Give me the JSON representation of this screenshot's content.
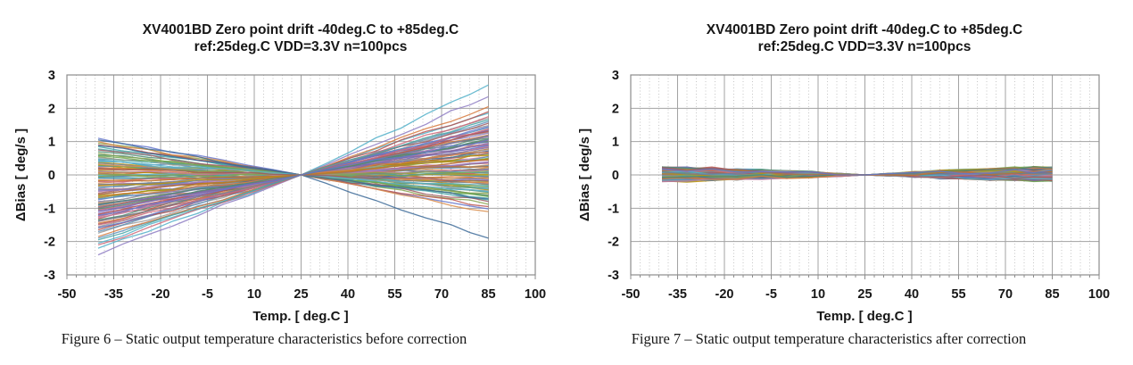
{
  "page": {
    "background": "#ffffff",
    "description": "Two datasheet figures: gyro zero-point temperature drift before and after correction"
  },
  "style": {
    "grid_major_color": "#a3a3a3",
    "grid_minor_color": "#c6c6c6",
    "border_color": "#8c8c8c",
    "text_color": "#161616",
    "line_palette": [
      "#d98c4a",
      "#5a8fb8",
      "#b85450",
      "#6aa84f",
      "#8e7cc3",
      "#45a5a5",
      "#c27ba0",
      "#9b9b9b",
      "#bf9000",
      "#3d6b99",
      "#cc6677",
      "#88a34d",
      "#7a6aa8",
      "#52b0c9",
      "#d6793d",
      "#708090",
      "#9e5a63",
      "#4d8a72",
      "#b87333",
      "#6677cc"
    ]
  },
  "chart_data": [
    {
      "type": "line",
      "title": "XV4001BD Zero point drift -40deg.C to +85deg.C",
      "subtitle": "ref:25deg.C VDD=3.3V n=100pcs",
      "xlabel": "Temp. [ deg.C ]",
      "ylabel": "ΔBias [ deg/s ]",
      "caption": "Figure 6 – Static output temperature characteristics before correction",
      "xlim": [
        -50,
        100
      ],
      "ylim": [
        -3,
        3
      ],
      "x_ticks": [
        -50,
        -35,
        -20,
        -5,
        10,
        25,
        40,
        55,
        70,
        85,
        100
      ],
      "y_ticks": [
        3,
        2,
        1,
        0,
        -1,
        -2,
        -3
      ],
      "x_minor_step": 3,
      "grid": "major solid both axes, dotted vertical minors",
      "legend": "none",
      "n_series": 100,
      "data_temp_range": [
        -40,
        85
      ],
      "reference_point": {
        "temp": 25,
        "bias": 0
      },
      "observed_spread": {
        "at_minus40": [
          -2.4,
          1.1
        ],
        "at_85": [
          -1.9,
          2.7
        ]
      },
      "noise_amplitude": 0.05,
      "values_at_minus40": [
        -0.85,
        0.45,
        -1.32,
        0.12,
        -2.4,
        0.78,
        -0.42,
        -1.75,
        0.3,
        -0.1,
        -1.05,
        0.95,
        -0.6,
        -2.05,
        0.22,
        -0.35,
        -1.48,
        0.6,
        -0.95,
        1.1,
        -0.25,
        -1.9,
        0.05,
        -0.7,
        -1.15,
        0.85,
        -0.5,
        -1.6,
        0.38,
        -0.05,
        -1.25,
        0.55,
        -0.8,
        -2.2,
        0.15,
        -0.45,
        -1.4,
        0.7,
        -1.0,
        0.25,
        -0.15,
        -1.7,
        0.9,
        -0.65,
        -1.1,
        0.48,
        -0.3,
        -1.55,
        0.08,
        -0.88,
        -0.2,
        0.65,
        -1.2,
        -0.02,
        -1.85,
        0.35,
        -0.55,
        -1.35,
        0.18,
        -0.75,
        1.0,
        -0.4,
        -1.65,
        0.28,
        -0.92,
        -0.08,
        -1.28,
        0.52,
        -0.62,
        1.05,
        -2.1,
        0.02,
        -0.98,
        0.42,
        -1.45,
        -0.28,
        0.75,
        -1.02,
        -0.18,
        -1.58,
        0.32,
        -0.72,
        -1.18,
        0.58,
        -0.48,
        -1.95,
        0.1,
        -0.82,
        -0.32,
        0.88,
        -1.5,
        -0.05,
        -1.08,
        0.4,
        -0.68,
        -1.38,
        0.2,
        -0.9,
        -0.58,
        -1.22
      ],
      "values_at_85": [
        0.92,
        -0.38,
        1.15,
        -0.2,
        2.35,
        -0.7,
        0.55,
        1.48,
        -0.45,
        0.18,
        0.85,
        -0.88,
        0.72,
        2.7,
        -0.12,
        0.25,
        1.32,
        -0.52,
        1.05,
        -1.02,
        0.3,
        1.6,
        0.08,
        0.62,
        1.25,
        -0.75,
        0.4,
        1.7,
        -0.3,
        -0.05,
        1.02,
        -0.6,
        0.95,
        1.85,
        -0.25,
        0.35,
        1.55,
        -0.62,
        0.78,
        -0.15,
        0.22,
        1.42,
        -0.95,
        0.5,
        0.98,
        -0.42,
        0.45,
        1.28,
        0.02,
        0.7,
        0.35,
        -0.55,
        1.35,
        0.1,
        2.05,
        -0.28,
        0.65,
        1.1,
        -0.08,
        0.88,
        -1.1,
        0.28,
        1.9,
        -0.35,
        1.15,
        0.05,
        0.92,
        -0.48,
        0.58,
        -1.9,
        1.75,
        -0.02,
        0.82,
        -0.5,
        1.2,
        0.15,
        -0.8,
        1.08,
        0.25,
        1.45,
        -0.22,
        0.55,
        1.3,
        -0.65,
        0.38,
        1.65,
        0.15,
        0.75,
        0.48,
        -0.72,
        1.38,
        0.12,
        0.9,
        -0.32,
        0.68,
        1.18,
        -0.18,
        1.0,
        0.45,
        1.05
      ]
    },
    {
      "type": "line",
      "title": "XV4001BD Zero point drift -40deg.C to +85deg.C",
      "subtitle": "ref:25deg.C VDD=3.3V n=100pcs",
      "xlabel": "Temp. [ deg.C ]",
      "ylabel": "ΔBias [ deg/s ]",
      "caption": "Figure 7 – Static output temperature characteristics after correction",
      "xlim": [
        -50,
        100
      ],
      "ylim": [
        -3,
        3
      ],
      "x_ticks": [
        -50,
        -35,
        -20,
        -5,
        10,
        25,
        40,
        55,
        70,
        85,
        100
      ],
      "y_ticks": [
        3,
        2,
        1,
        0,
        -1,
        -2,
        -3
      ],
      "x_minor_step": 3,
      "grid": "major solid both axes, dotted vertical minors",
      "legend": "none",
      "n_series": 100,
      "data_temp_range": [
        -40,
        85
      ],
      "reference_point": {
        "temp": 25,
        "bias": 0
      },
      "observed_spread": {
        "at_minus40": [
          -0.2,
          0.25
        ],
        "at_85": [
          -0.2,
          0.25
        ]
      },
      "noise_amplitude": 0.06,
      "values_at_minus40": [
        0.12,
        -0.08,
        0.18,
        0.04,
        -0.15,
        0.22,
        -0.05,
        0.1,
        -0.18,
        0.07,
        0.15,
        -0.12,
        0.02,
        0.2,
        -0.1,
        0.05,
        -0.2,
        0.14,
        -0.03,
        0.08,
        -0.16,
        0.11,
        0.24,
        -0.06,
        0.16,
        -0.13,
        0.03,
        0.19,
        -0.09,
        0.06,
        0.13,
        -0.17,
        0.09,
        -0.02,
        0.21,
        -0.11,
        0.04,
        0.17,
        -0.07,
        0.12,
        -0.14,
        0.08,
        0.23,
        -0.04,
        0.1,
        -0.19,
        0.05,
        0.15,
        -0.08,
        0.18,
        0.01,
        -0.12,
        0.2,
        -0.05,
        0.14,
        -0.16,
        0.07,
        0.11,
        -0.1,
        0.22,
        -0.06,
        0.16,
        -0.13,
        0.09,
        0.19,
        -0.03,
        0.12,
        -0.18,
        0.06,
        0.15,
        -0.09,
        0.21,
        0.02,
        -0.14,
        0.17,
        -0.07,
        0.1,
        0.24,
        -0.11,
        0.05,
        0.13,
        -0.15,
        0.08,
        0.18,
        -0.04,
        0.11,
        -0.2,
        0.14,
        0.03,
        -0.1,
        0.16,
        -0.06,
        0.2,
        0.07,
        -0.12,
        0.09,
        0.22,
        -0.08,
        0.13,
        0.17
      ],
      "values_at_85": [
        -0.1,
        0.14,
        0.06,
        -0.16,
        0.11,
        0.03,
        0.18,
        -0.07,
        0.15,
        -0.12,
        0.08,
        0.21,
        -0.05,
        0.12,
        -0.18,
        0.16,
        0.04,
        -0.09,
        0.2,
        -0.13,
        0.1,
        -0.06,
        0.17,
        0.23,
        -0.11,
        0.07,
        -0.15,
        0.13,
        0.05,
        -0.19,
        0.09,
        0.16,
        -0.04,
        0.22,
        -0.08,
        0.14,
        -0.17,
        0.06,
        0.11,
        -0.14,
        0.19,
        -0.02,
        0.12,
        0.24,
        -0.1,
        0.08,
        0.15,
        -0.06,
        0.18,
        -0.13,
        0.05,
        0.1,
        -0.16,
        0.21,
        0.03,
        0.13,
        -0.08,
        0.17,
        0.07,
        -0.11,
        0.2,
        -0.05,
        0.15,
        -0.18,
        0.09,
        0.12,
        -0.03,
        0.16,
        0.22,
        -0.09,
        0.06,
        0.14,
        -0.12,
        0.18,
        0.02,
        -0.15,
        0.11,
        0.08,
        0.19,
        -0.07,
        0.13,
        0.04,
        -0.17,
        0.1,
        0.23,
        -0.06,
        0.16,
        -0.1,
        0.12,
        0.2,
        -0.04,
        0.15,
        0.07,
        -0.13,
        0.18,
        0.05,
        -0.08,
        0.21,
        0.09,
        0.14
      ]
    }
  ]
}
